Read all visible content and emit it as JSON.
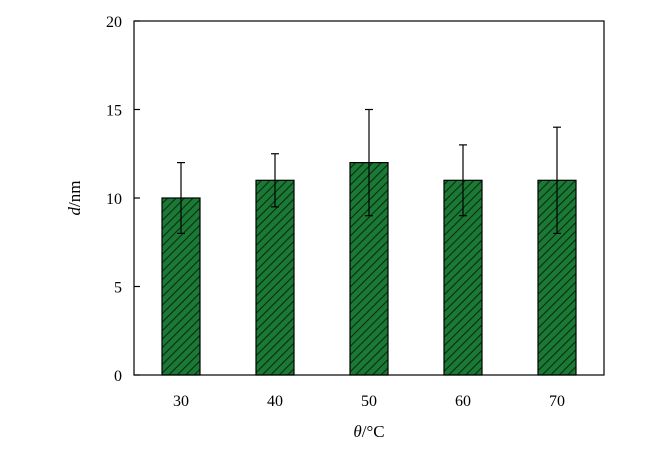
{
  "chart_data": {
    "type": "bar",
    "categories": [
      "30",
      "40",
      "50",
      "60",
      "70"
    ],
    "values": [
      10,
      11,
      12,
      11,
      11
    ],
    "error_bars": {
      "lower": [
        8,
        9.5,
        9,
        9,
        8
      ],
      "upper": [
        12,
        12.5,
        15,
        13,
        14
      ]
    },
    "title": "",
    "xlabel": {
      "symbol": "θ",
      "unit": "/°C"
    },
    "ylabel": {
      "symbol": "d",
      "unit": "/nm"
    },
    "ylim": [
      0,
      20
    ],
    "yticks": [
      "0",
      "5",
      "10",
      "15",
      "20"
    ],
    "grid": false,
    "legend": "none",
    "bar_color": "#1a7a35",
    "hatch_color": "#0b2a12",
    "bar_pattern": "diagonal-hatch"
  }
}
